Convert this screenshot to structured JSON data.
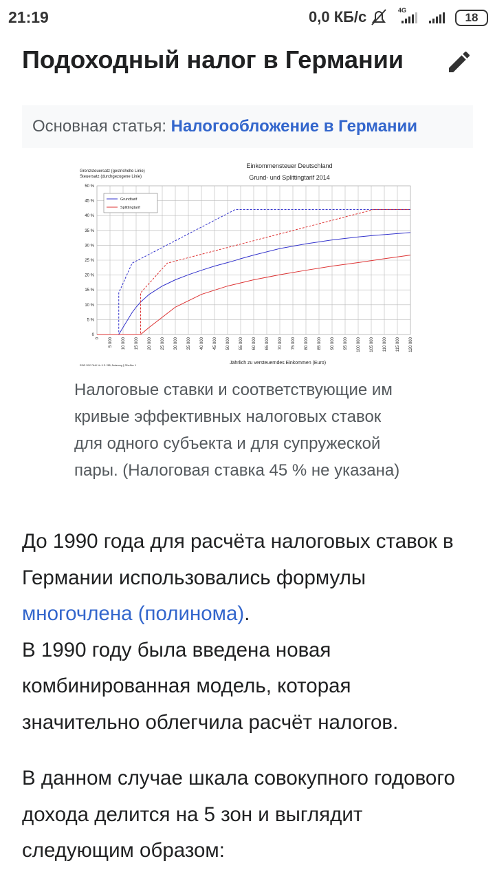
{
  "status_bar": {
    "time": "21:19",
    "speed": "0,0 КБ/с",
    "network": "4G",
    "battery": "18"
  },
  "heading": "Подоходный налог в Германии",
  "hatnote": {
    "prefix": "Основная статья:",
    "link": "Налогообложение в Германии"
  },
  "figure": {
    "chart_data": {
      "type": "line",
      "title": "Einkommensteuer Deutschland",
      "subtitle": "Grund- und Splittingtarif 2014",
      "y_label": [
        "Grenzsteuersatz (gestrichelte Linie)",
        "Steuersatz (durchgezogene Linie)"
      ],
      "x_label": "Jährlich zu versteuerndes Einkommen (Euro)",
      "source": "EStG 2013 Teil I Nr. 9 S. 285, Änderung § 32a Abs. 1",
      "xlim": [
        0,
        120000
      ],
      "ylim": [
        0,
        50
      ],
      "xticks": [
        0,
        {
          "value": 5000,
          "label": "5 000"
        },
        {
          "value": 10000,
          "label": "10 000"
        },
        {
          "value": 15000,
          "label": "15 000"
        },
        {
          "value": 20000,
          "label": "20 000"
        },
        {
          "value": 25000,
          "label": "25 000"
        },
        {
          "value": 30000,
          "label": "30 000"
        },
        {
          "value": 35000,
          "label": "35 000"
        },
        {
          "value": 40000,
          "label": "40 000"
        },
        {
          "value": 45000,
          "label": "45 000"
        },
        {
          "value": 50000,
          "label": "50 000"
        },
        {
          "value": 55000,
          "label": "55 000"
        },
        {
          "value": 60000,
          "label": "60 000"
        },
        {
          "value": 65000,
          "label": "65 000"
        },
        {
          "value": 70000,
          "label": "70 000"
        },
        {
          "value": 75000,
          "label": "75 000"
        },
        {
          "value": 80000,
          "label": "80 000"
        },
        {
          "value": 85000,
          "label": "85 000"
        },
        {
          "value": 90000,
          "label": "90 000"
        },
        {
          "value": 95000,
          "label": "95 000"
        },
        {
          "value": 100000,
          "label": "100 000"
        },
        {
          "value": 105000,
          "label": "105 000"
        },
        {
          "value": 110000,
          "label": "110 000"
        },
        {
          "value": 115000,
          "label": "115 000"
        },
        {
          "value": 120000,
          "label": "120 000"
        }
      ],
      "yticks": [
        0,
        {
          "value": 5,
          "label": "5 %"
        },
        {
          "value": 10,
          "label": "10 %"
        },
        {
          "value": 15,
          "label": "15 %"
        },
        {
          "value": 20,
          "label": "20 %"
        },
        {
          "value": 25,
          "label": "25 %"
        },
        {
          "value": 30,
          "label": "30 %"
        },
        {
          "value": 35,
          "label": "35 %"
        },
        {
          "value": 40,
          "label": "40 %"
        },
        {
          "value": 45,
          "label": "45 %"
        },
        {
          "value": 50,
          "label": "50 %"
        }
      ],
      "grid": true,
      "legend": "top-left",
      "series": [
        {
          "name": "Grundtarif",
          "color": "#3333cc",
          "x": [
            0,
            8354,
            10000,
            13469,
            15000,
            16708,
            20000,
            25000,
            26938,
            30000,
            35000,
            40000,
            45000,
            50000,
            52881,
            55000,
            60000,
            70000,
            80000,
            90000,
            100000,
            105762,
            110000,
            120000
          ],
          "values": [
            0,
            0,
            2.4,
            7.4,
            9.2,
            10.9,
            13.5,
            16.3,
            17.1,
            18.4,
            20.1,
            21.6,
            23.0,
            24.2,
            24.9,
            25.5,
            26.7,
            28.9,
            30.5,
            31.8,
            32.8,
            33.3,
            33.6,
            34.3
          ],
          "marginal_x": [
            0,
            8354,
            8354,
            13469,
            52881,
            120000
          ],
          "marginal": [
            0,
            0,
            14,
            24,
            42,
            42
          ]
        },
        {
          "name": "Splittingtarif",
          "color": "#dd3333",
          "x": [
            0,
            16708,
            20000,
            30000,
            40000,
            50000,
            60000,
            70000,
            80000,
            90000,
            100000,
            110000,
            120000
          ],
          "values": [
            0,
            0,
            2.4,
            9.2,
            13.5,
            16.3,
            18.4,
            20.1,
            21.6,
            23.0,
            24.2,
            25.5,
            26.7
          ],
          "marginal_x": [
            0,
            16708,
            16708,
            26938,
            105762,
            120000
          ],
          "marginal": [
            0,
            0,
            14,
            24,
            42,
            42
          ]
        }
      ]
    },
    "caption": "Налоговые ставки и соответствующие им кривые эффективных налоговых ставок для одного субъекта и для супружеской пары. (Налоговая ставка 45 % не указана)"
  },
  "paragraphs": [
    {
      "text1": "До 1990 года для расчёта налоговых ставок в Германии использовались формулы",
      "link": "многочлена (полинома)",
      "text2": ".",
      "text3": "В 1990 году была введена новая комбинированная модель, которая значительно облегчила расчёт налогов."
    },
    {
      "text1": "В данном случае шкала совокупного годового дохода делится на 5 зон и выглядит следующим образом:"
    }
  ]
}
